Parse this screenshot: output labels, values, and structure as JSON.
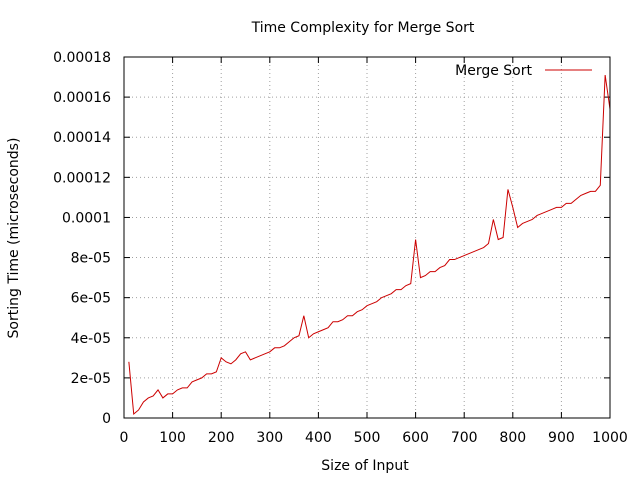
{
  "chart_data": {
    "type": "line",
    "title": "Time Complexity for Merge Sort",
    "xlabel": "Size of Input",
    "ylabel": "Sorting Time (microseconds)",
    "xlim": [
      0,
      1000
    ],
    "ylim": [
      0,
      0.00018
    ],
    "x_ticks": [
      0,
      100,
      200,
      300,
      400,
      500,
      600,
      700,
      800,
      900,
      1000
    ],
    "x_tick_labels": [
      "0",
      "100",
      "200",
      "300",
      "400",
      "500",
      "600",
      "700",
      "800",
      "900",
      "1000"
    ],
    "y_ticks": [
      0,
      2e-05,
      4e-05,
      6e-05,
      8e-05,
      0.0001,
      0.00012,
      0.00014,
      0.00016,
      0.00018
    ],
    "y_tick_labels": [
      "0",
      "2e-05",
      "4e-05",
      "6e-05",
      "8e-05",
      "0.0001",
      "0.00012",
      "0.00014",
      "0.00016",
      "0.00018"
    ],
    "grid": true,
    "legend_position": "top-right",
    "series": [
      {
        "name": "Merge Sort",
        "color": "#cc0000",
        "x": [
          10,
          20,
          30,
          40,
          50,
          60,
          70,
          80,
          90,
          100,
          110,
          120,
          130,
          140,
          150,
          160,
          170,
          180,
          190,
          200,
          210,
          220,
          230,
          240,
          250,
          260,
          270,
          280,
          290,
          300,
          310,
          320,
          330,
          340,
          350,
          360,
          370,
          380,
          390,
          400,
          410,
          420,
          430,
          440,
          450,
          460,
          470,
          480,
          490,
          500,
          510,
          520,
          530,
          540,
          550,
          560,
          570,
          580,
          590,
          600,
          610,
          620,
          630,
          640,
          650,
          660,
          670,
          680,
          690,
          700,
          710,
          720,
          730,
          740,
          750,
          760,
          770,
          780,
          790,
          800,
          810,
          820,
          830,
          840,
          850,
          860,
          870,
          880,
          890,
          900,
          910,
          920,
          930,
          940,
          950,
          960,
          970,
          980,
          990,
          1000
        ],
        "y": [
          2.8e-05,
          2e-06,
          4e-06,
          8e-06,
          1e-05,
          1.1e-05,
          1.4e-05,
          1e-05,
          1.2e-05,
          1.2e-05,
          1.4e-05,
          1.5e-05,
          1.5e-05,
          1.8e-05,
          1.9e-05,
          2e-05,
          2.2e-05,
          2.2e-05,
          2.3e-05,
          3e-05,
          2.8e-05,
          2.7e-05,
          2.9e-05,
          3.2e-05,
          3.3e-05,
          2.9e-05,
          3e-05,
          3.1e-05,
          3.2e-05,
          3.3e-05,
          3.5e-05,
          3.5e-05,
          3.6e-05,
          3.8e-05,
          4e-05,
          4.1e-05,
          5.1e-05,
          4e-05,
          4.2e-05,
          4.3e-05,
          4.4e-05,
          4.5e-05,
          4.8e-05,
          4.8e-05,
          4.9e-05,
          5.1e-05,
          5.1e-05,
          5.3e-05,
          5.4e-05,
          5.6e-05,
          5.7e-05,
          5.8e-05,
          6e-05,
          6.1e-05,
          6.2e-05,
          6.4e-05,
          6.4e-05,
          6.6e-05,
          6.7e-05,
          8.9e-05,
          7e-05,
          7.1e-05,
          7.3e-05,
          7.3e-05,
          7.5e-05,
          7.6e-05,
          7.9e-05,
          7.9e-05,
          8e-05,
          8.1e-05,
          8.2e-05,
          8.3e-05,
          8.4e-05,
          8.5e-05,
          8.7e-05,
          9.9e-05,
          8.9e-05,
          9e-05,
          0.000114,
          0.000105,
          9.5e-05,
          9.7e-05,
          9.8e-05,
          9.9e-05,
          0.000101,
          0.000102,
          0.000103,
          0.000104,
          0.000105,
          0.000105,
          0.000107,
          0.000107,
          0.000109,
          0.000111,
          0.000112,
          0.000113,
          0.000113,
          0.000116,
          0.000171,
          0.000154
        ]
      }
    ]
  }
}
